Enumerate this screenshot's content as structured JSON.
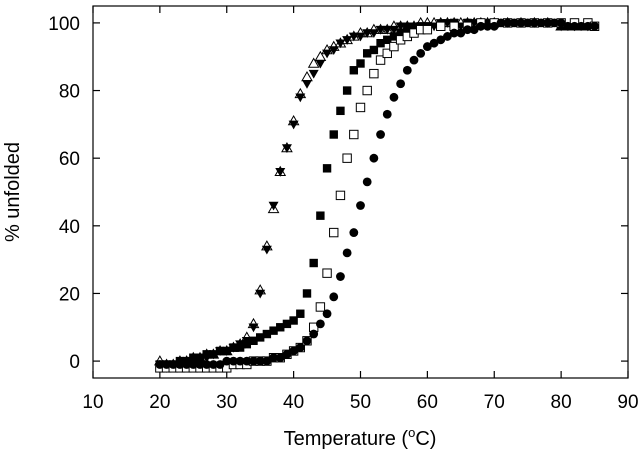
{
  "chart_data": {
    "type": "scatter",
    "xlabel": "Temperature (°C)",
    "xlabel_parts": {
      "text": "Temperature (",
      "sup": "o",
      "unit": "C)"
    },
    "ylabel": "% unfolded",
    "xlim": [
      10,
      90
    ],
    "ylim": [
      -5,
      105
    ],
    "xticks": [
      10,
      20,
      30,
      40,
      50,
      60,
      70,
      80,
      90
    ],
    "yticks": [
      0,
      20,
      40,
      60,
      80,
      100
    ],
    "grid": false,
    "legend": "none",
    "series": [
      {
        "marker": "triangle-down-filled",
        "color": "#000000",
        "points": [
          [
            20,
            -1
          ],
          [
            21,
            -2
          ],
          [
            22,
            -1
          ],
          [
            23,
            -1
          ],
          [
            24,
            0
          ],
          [
            25,
            0
          ],
          [
            26,
            1
          ],
          [
            27,
            1
          ],
          [
            28,
            2
          ],
          [
            29,
            3
          ],
          [
            30,
            3
          ],
          [
            31,
            4
          ],
          [
            32,
            5
          ],
          [
            33,
            6
          ],
          [
            34,
            10
          ],
          [
            35,
            20
          ],
          [
            36,
            33
          ],
          [
            37,
            46
          ],
          [
            38,
            56
          ],
          [
            39,
            63
          ],
          [
            40,
            70
          ],
          [
            41,
            78
          ],
          [
            42,
            82
          ],
          [
            43,
            85
          ],
          [
            44,
            88
          ],
          [
            45,
            91
          ],
          [
            46,
            92
          ],
          [
            47,
            94
          ],
          [
            48,
            95
          ],
          [
            49,
            96
          ],
          [
            50,
            96
          ],
          [
            51,
            97
          ],
          [
            52,
            97
          ],
          [
            53,
            98
          ],
          [
            54,
            98
          ],
          [
            55,
            98
          ],
          [
            56,
            99
          ],
          [
            57,
            99
          ],
          [
            58,
            99
          ],
          [
            59,
            99
          ],
          [
            60,
            99
          ],
          [
            61,
            99
          ],
          [
            62,
            100
          ],
          [
            63,
            100
          ],
          [
            64,
            100
          ],
          [
            65,
            99
          ],
          [
            66,
            100
          ],
          [
            67,
            100
          ],
          [
            68,
            99
          ],
          [
            69,
            100
          ],
          [
            70,
            100
          ],
          [
            72,
            100
          ],
          [
            74,
            100
          ],
          [
            76,
            100
          ],
          [
            78,
            100
          ],
          [
            80,
            99
          ],
          [
            82,
            99
          ],
          [
            84,
            99
          ]
        ]
      },
      {
        "marker": "triangle-up-open",
        "color": "#000000",
        "points": [
          [
            20,
            0
          ],
          [
            21,
            -1
          ],
          [
            22,
            -1
          ],
          [
            23,
            0
          ],
          [
            24,
            0
          ],
          [
            25,
            1
          ],
          [
            26,
            1
          ],
          [
            27,
            2
          ],
          [
            28,
            2
          ],
          [
            29,
            3
          ],
          [
            30,
            3
          ],
          [
            31,
            4
          ],
          [
            32,
            5
          ],
          [
            33,
            7
          ],
          [
            34,
            11
          ],
          [
            35,
            21
          ],
          [
            36,
            34
          ],
          [
            37,
            45
          ],
          [
            38,
            56
          ],
          [
            39,
            63
          ],
          [
            40,
            71
          ],
          [
            41,
            79
          ],
          [
            42,
            84
          ],
          [
            43,
            88
          ],
          [
            44,
            90
          ],
          [
            45,
            92
          ],
          [
            46,
            93
          ],
          [
            47,
            94
          ],
          [
            48,
            95
          ],
          [
            49,
            96
          ],
          [
            50,
            97
          ],
          [
            51,
            97
          ],
          [
            52,
            98
          ],
          [
            53,
            98
          ],
          [
            54,
            98
          ],
          [
            55,
            99
          ],
          [
            56,
            99
          ],
          [
            57,
            99
          ],
          [
            58,
            99
          ],
          [
            59,
            100
          ],
          [
            60,
            100
          ],
          [
            61,
            100
          ],
          [
            62,
            100
          ],
          [
            63,
            100
          ],
          [
            64,
            100
          ],
          [
            65,
            100
          ],
          [
            66,
            100
          ],
          [
            67,
            100
          ],
          [
            68,
            100
          ],
          [
            69,
            100
          ],
          [
            70,
            100
          ],
          [
            72,
            100
          ],
          [
            74,
            100
          ],
          [
            76,
            100
          ],
          [
            78,
            100
          ],
          [
            80,
            99
          ],
          [
            82,
            99
          ],
          [
            84,
            99
          ]
        ]
      },
      {
        "marker": "square-filled",
        "color": "#000000",
        "points": [
          [
            20,
            -1
          ],
          [
            21,
            -1
          ],
          [
            22,
            -1
          ],
          [
            23,
            0
          ],
          [
            24,
            0
          ],
          [
            25,
            1
          ],
          [
            26,
            1
          ],
          [
            27,
            2
          ],
          [
            28,
            2
          ],
          [
            29,
            3
          ],
          [
            30,
            3
          ],
          [
            31,
            4
          ],
          [
            32,
            4
          ],
          [
            33,
            5
          ],
          [
            34,
            6
          ],
          [
            35,
            7
          ],
          [
            36,
            8
          ],
          [
            37,
            9
          ],
          [
            38,
            10
          ],
          [
            39,
            11
          ],
          [
            40,
            12
          ],
          [
            41,
            14
          ],
          [
            42,
            20
          ],
          [
            43,
            29
          ],
          [
            44,
            43
          ],
          [
            45,
            57
          ],
          [
            46,
            67
          ],
          [
            47,
            74
          ],
          [
            48,
            80
          ],
          [
            49,
            86
          ],
          [
            50,
            88
          ],
          [
            51,
            91
          ],
          [
            52,
            92
          ],
          [
            53,
            94
          ],
          [
            54,
            95
          ],
          [
            55,
            96
          ],
          [
            56,
            97
          ],
          [
            57,
            98
          ],
          [
            58,
            98
          ],
          [
            59,
            99
          ],
          [
            60,
            99
          ],
          [
            62,
            99
          ],
          [
            64,
            100
          ],
          [
            66,
            100
          ],
          [
            68,
            100
          ],
          [
            70,
            100
          ],
          [
            72,
            100
          ],
          [
            74,
            100
          ],
          [
            76,
            100
          ],
          [
            78,
            100
          ],
          [
            80,
            99
          ],
          [
            82,
            99
          ],
          [
            84,
            99
          ],
          [
            85,
            99
          ]
        ]
      },
      {
        "marker": "square-open",
        "color": "#000000",
        "points": [
          [
            20,
            -2
          ],
          [
            21,
            -2
          ],
          [
            22,
            -2
          ],
          [
            23,
            -2
          ],
          [
            24,
            -2
          ],
          [
            25,
            -2
          ],
          [
            26,
            -2
          ],
          [
            27,
            -2
          ],
          [
            28,
            -2
          ],
          [
            29,
            -2
          ],
          [
            30,
            -2
          ],
          [
            31,
            -1
          ],
          [
            32,
            -1
          ],
          [
            33,
            -1
          ],
          [
            34,
            0
          ],
          [
            35,
            0
          ],
          [
            36,
            0
          ],
          [
            37,
            1
          ],
          [
            38,
            1
          ],
          [
            39,
            2
          ],
          [
            40,
            3
          ],
          [
            41,
            4
          ],
          [
            42,
            6
          ],
          [
            43,
            10
          ],
          [
            44,
            16
          ],
          [
            45,
            26
          ],
          [
            46,
            38
          ],
          [
            47,
            49
          ],
          [
            48,
            60
          ],
          [
            49,
            67
          ],
          [
            50,
            75
          ],
          [
            51,
            80
          ],
          [
            52,
            85
          ],
          [
            53,
            89
          ],
          [
            54,
            91
          ],
          [
            55,
            93
          ],
          [
            56,
            95
          ],
          [
            57,
            96
          ],
          [
            58,
            97
          ],
          [
            59,
            98
          ],
          [
            60,
            98
          ],
          [
            62,
            99
          ],
          [
            64,
            99
          ],
          [
            66,
            99
          ],
          [
            68,
            100
          ],
          [
            70,
            100
          ],
          [
            72,
            100
          ],
          [
            74,
            100
          ],
          [
            76,
            100
          ],
          [
            78,
            100
          ],
          [
            80,
            100
          ],
          [
            82,
            100
          ],
          [
            84,
            100
          ],
          [
            85,
            99
          ]
        ]
      },
      {
        "marker": "circle-filled",
        "color": "#000000",
        "points": [
          [
            20,
            -1
          ],
          [
            21,
            -1
          ],
          [
            22,
            -1
          ],
          [
            23,
            -1
          ],
          [
            24,
            -1
          ],
          [
            25,
            -1
          ],
          [
            26,
            -1
          ],
          [
            27,
            -1
          ],
          [
            28,
            -1
          ],
          [
            29,
            -1
          ],
          [
            30,
            0
          ],
          [
            31,
            0
          ],
          [
            32,
            0
          ],
          [
            33,
            0
          ],
          [
            34,
            0
          ],
          [
            35,
            0
          ],
          [
            36,
            0
          ],
          [
            37,
            1
          ],
          [
            38,
            1
          ],
          [
            39,
            2
          ],
          [
            40,
            3
          ],
          [
            41,
            4
          ],
          [
            42,
            6
          ],
          [
            43,
            8
          ],
          [
            44,
            11
          ],
          [
            45,
            14
          ],
          [
            46,
            19
          ],
          [
            47,
            25
          ],
          [
            48,
            32
          ],
          [
            49,
            38
          ],
          [
            50,
            46
          ],
          [
            51,
            53
          ],
          [
            52,
            60
          ],
          [
            53,
            67
          ],
          [
            54,
            73
          ],
          [
            55,
            78
          ],
          [
            56,
            82
          ],
          [
            57,
            86
          ],
          [
            58,
            89
          ],
          [
            59,
            91
          ],
          [
            60,
            93
          ],
          [
            61,
            94
          ],
          [
            62,
            95
          ],
          [
            63,
            96
          ],
          [
            64,
            97
          ],
          [
            65,
            97
          ],
          [
            66,
            98
          ],
          [
            67,
            98
          ],
          [
            68,
            99
          ],
          [
            69,
            99
          ],
          [
            70,
            99
          ],
          [
            71,
            100
          ],
          [
            72,
            100
          ],
          [
            73,
            100
          ],
          [
            74,
            100
          ],
          [
            75,
            100
          ],
          [
            76,
            100
          ],
          [
            77,
            100
          ],
          [
            78,
            100
          ],
          [
            79,
            100
          ],
          [
            80,
            100
          ],
          [
            81,
            99
          ],
          [
            82,
            99
          ],
          [
            83,
            99
          ],
          [
            84,
            99
          ],
          [
            85,
            99
          ]
        ]
      }
    ]
  }
}
